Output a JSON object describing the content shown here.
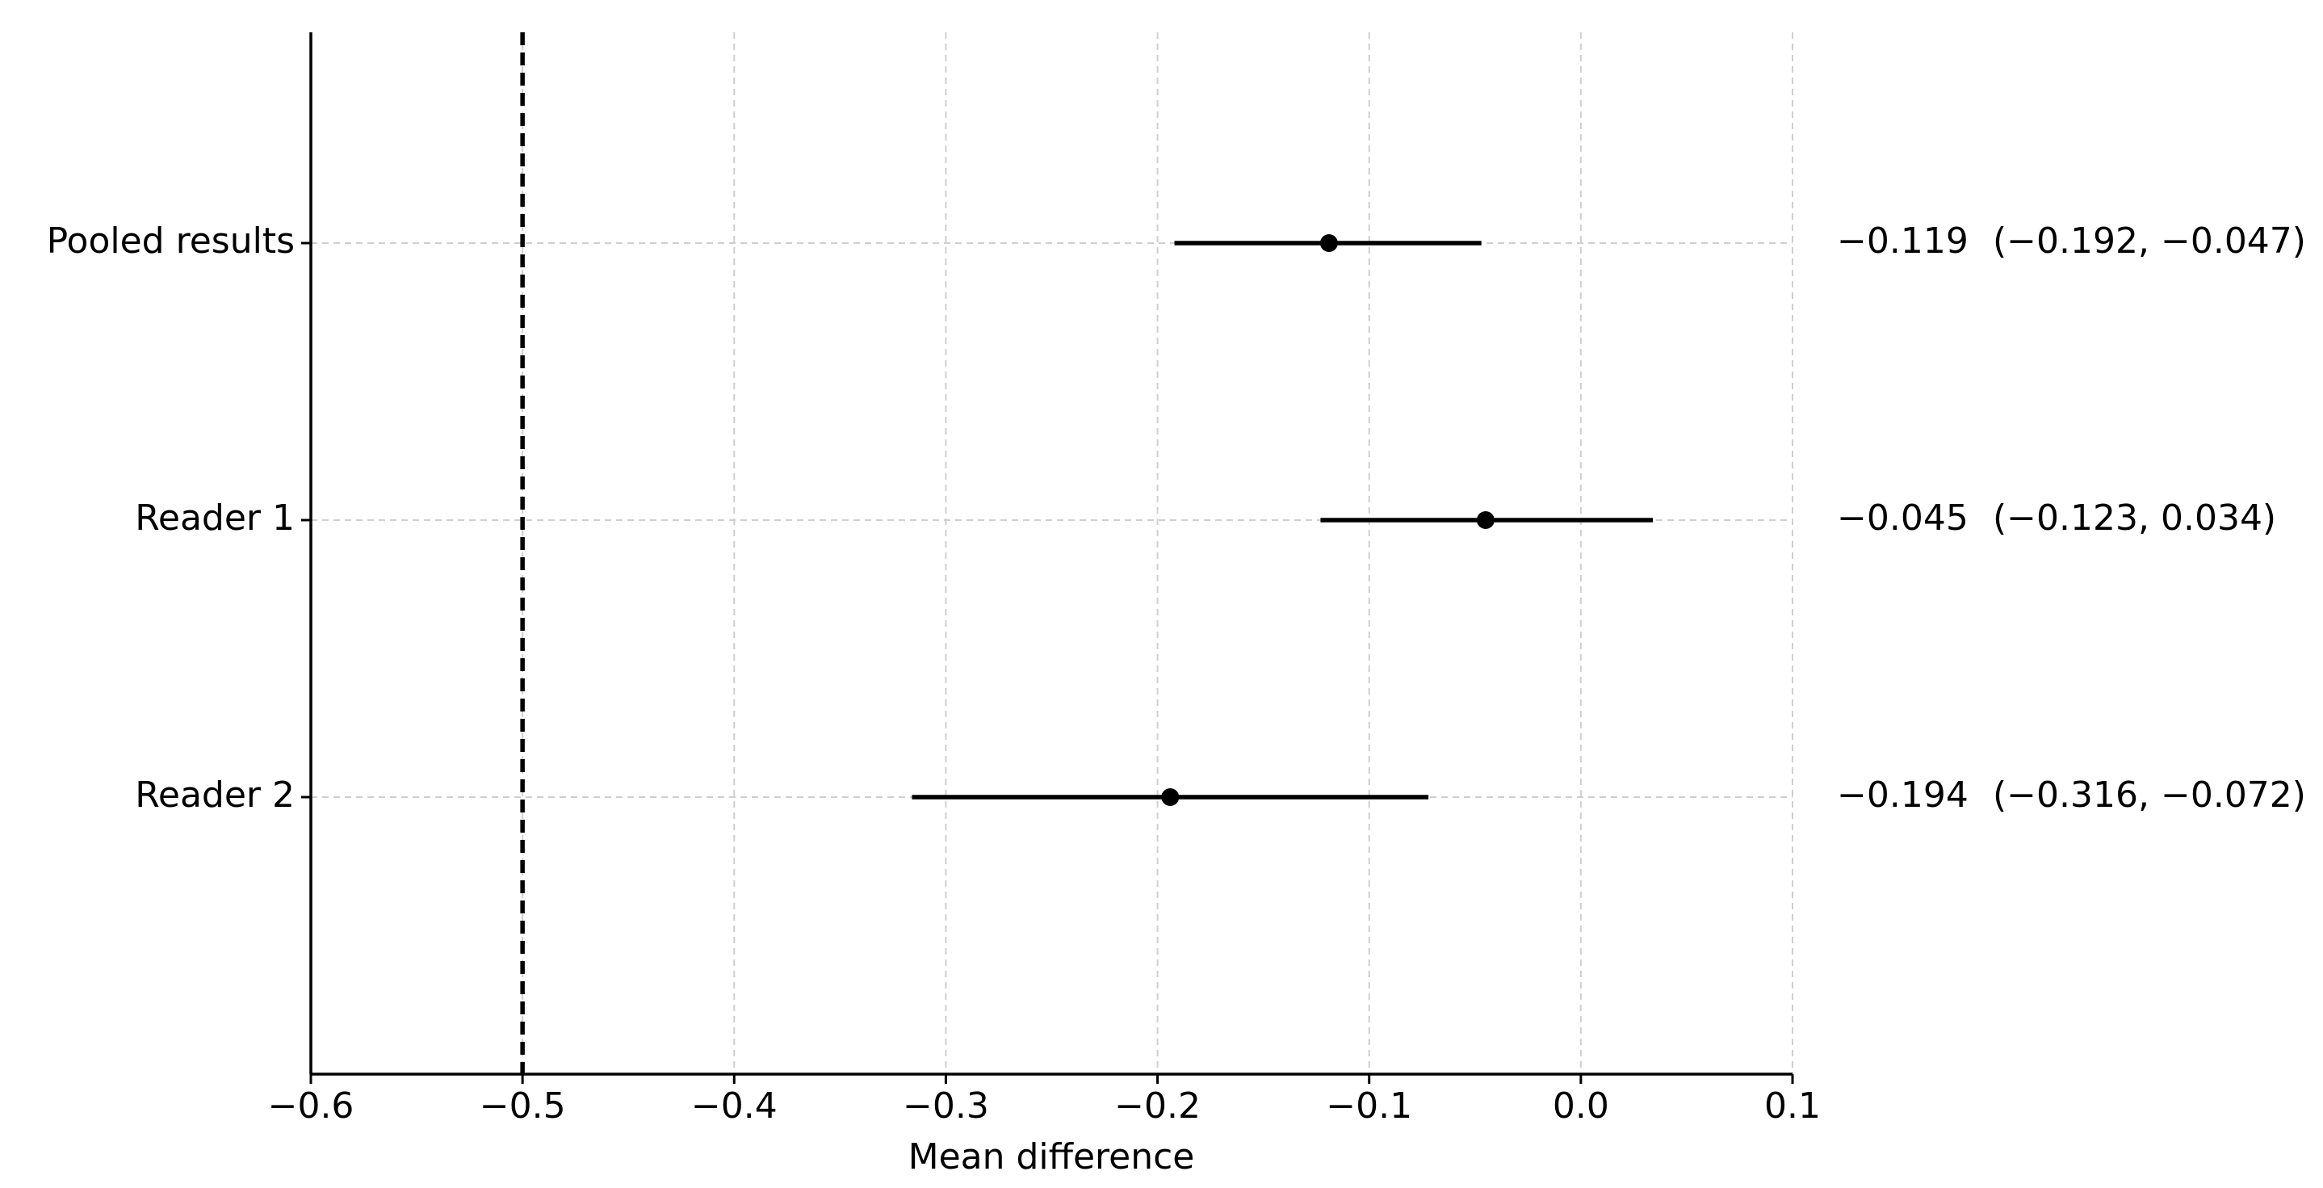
{
  "chart_data": {
    "type": "forest",
    "xlabel": "Mean difference",
    "categories": [
      "Pooled results",
      "Reader 1",
      "Reader 2"
    ],
    "values": [
      -0.119,
      -0.045,
      -0.194
    ],
    "lower": [
      -0.192,
      -0.123,
      -0.316
    ],
    "upper": [
      -0.047,
      0.034,
      -0.072
    ],
    "value_labels": [
      "−0.119",
      "−0.045",
      "−0.194"
    ],
    "ci_labels": [
      "(−0.192, −0.047)",
      "(−0.123, 0.034)",
      "(−0.316, −0.072)"
    ],
    "ref_line": -0.5,
    "xlim": [
      -0.6,
      0.1
    ],
    "xticks": [
      {
        "value": -0.6,
        "label": "−0.6"
      },
      {
        "value": -0.5,
        "label": "−0.5"
      },
      {
        "value": -0.4,
        "label": "−0.4"
      },
      {
        "value": -0.3,
        "label": "−0.3"
      },
      {
        "value": -0.2,
        "label": "−0.2"
      },
      {
        "value": -0.1,
        "label": "−0.1"
      },
      {
        "value": 0,
        "label": "0.0"
      },
      0.1
    ],
    "grid": true,
    "color": "#000000"
  }
}
